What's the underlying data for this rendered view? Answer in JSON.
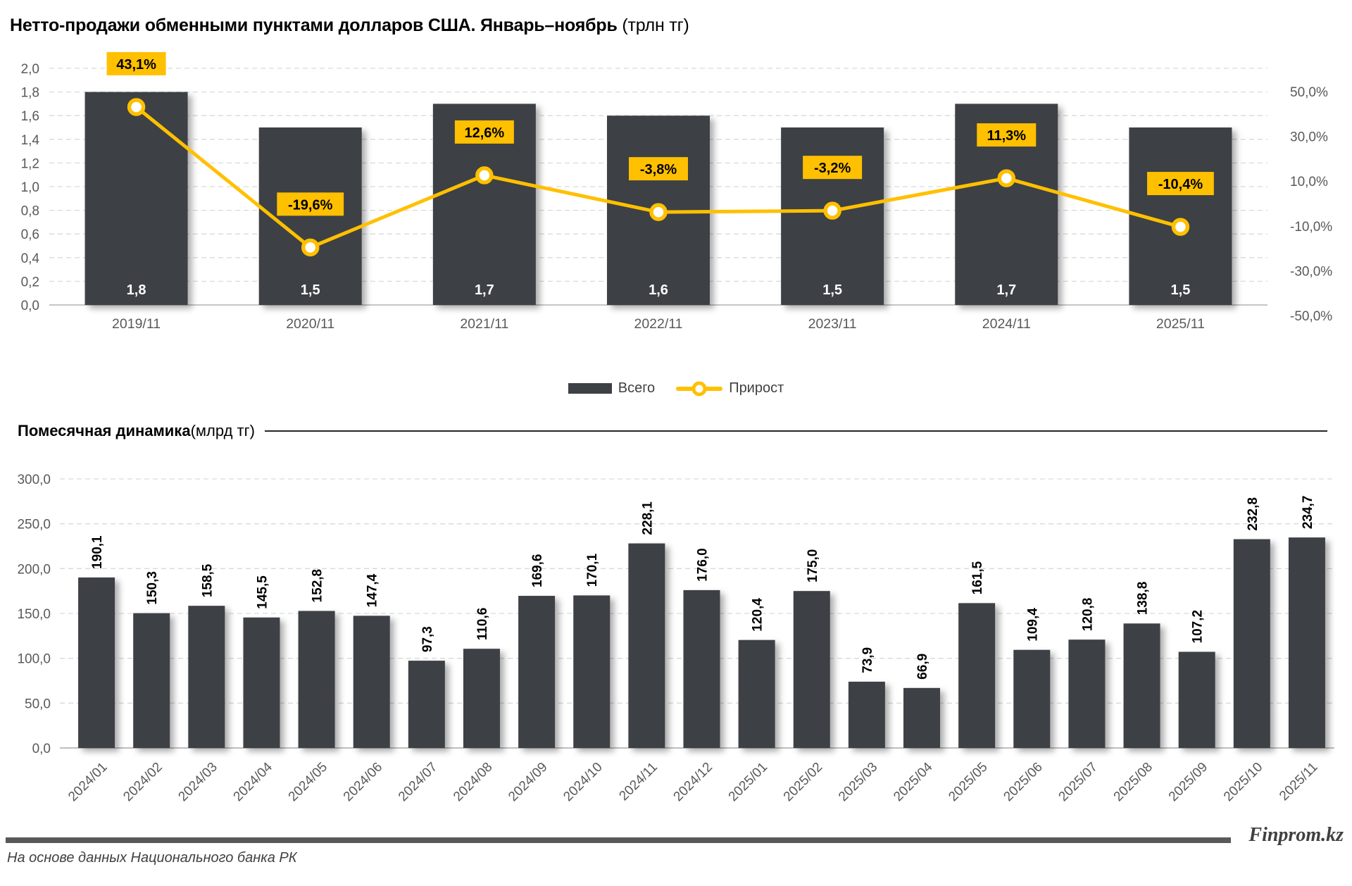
{
  "header": {
    "title_bold": "Нетто-продажи обменными пунктами долларов США. Январь–ноябрь",
    "title_unit": " (трлн тг)"
  },
  "section2": {
    "title_bold": "Помесячная динамика",
    "title_unit": " (млрд тг)"
  },
  "footer": {
    "brand": "Finprom.kz",
    "source": "На основе данных Национального банка РК"
  },
  "colors": {
    "bar": "#3d4145",
    "accent": "#ffc000",
    "grid": "#d9d9d9",
    "axis_text": "#595959",
    "bar_label": "#ffffff",
    "text": "#000000"
  },
  "chart_data": [
    {
      "type": "bar",
      "title": "Нетто-продажи обменными пунктами долларов США. Январь–ноябрь (трлн тг)",
      "categories": [
        "2019/11",
        "2020/11",
        "2021/11",
        "2022/11",
        "2023/11",
        "2024/11",
        "2025/11"
      ],
      "series": [
        {
          "name": "Всего",
          "type": "bar",
          "unit": "трлн тг",
          "values": [
            1.8,
            1.5,
            1.7,
            1.6,
            1.5,
            1.7,
            1.5
          ]
        },
        {
          "name": "Прирост",
          "type": "line",
          "unit": "%",
          "values": [
            43.1,
            -19.6,
            12.6,
            -3.8,
            -3.2,
            11.3,
            -10.4
          ]
        }
      ],
      "left_axis": {
        "min": 0,
        "max": 2,
        "step": 0.2
      },
      "right_axis": {
        "min": -50,
        "max": 50,
        "step": 20,
        "suffix": "%"
      },
      "grid": true,
      "legend_position": "bottom"
    },
    {
      "type": "bar",
      "title": "Помесячная динамика (млрд тг)",
      "categories": [
        "2024/01",
        "2024/02",
        "2024/03",
        "2024/04",
        "2024/05",
        "2024/06",
        "2024/07",
        "2024/08",
        "2024/09",
        "2024/10",
        "2024/11",
        "2024/12",
        "2025/01",
        "2025/02",
        "2025/03",
        "2025/04",
        "2025/05",
        "2025/06",
        "2025/07",
        "2025/08",
        "2025/09",
        "2025/10",
        "2025/11"
      ],
      "values": [
        190.1,
        150.3,
        158.5,
        145.5,
        152.8,
        147.4,
        97.3,
        110.6,
        169.6,
        170.1,
        228.1,
        176.0,
        120.4,
        175.0,
        73.9,
        66.9,
        161.5,
        109.4,
        120.8,
        138.8,
        107.2,
        232.8,
        234.7
      ],
      "xlabel": "",
      "ylabel": "",
      "ylim": [
        0,
        300
      ],
      "ystep": 50,
      "grid": true
    }
  ]
}
